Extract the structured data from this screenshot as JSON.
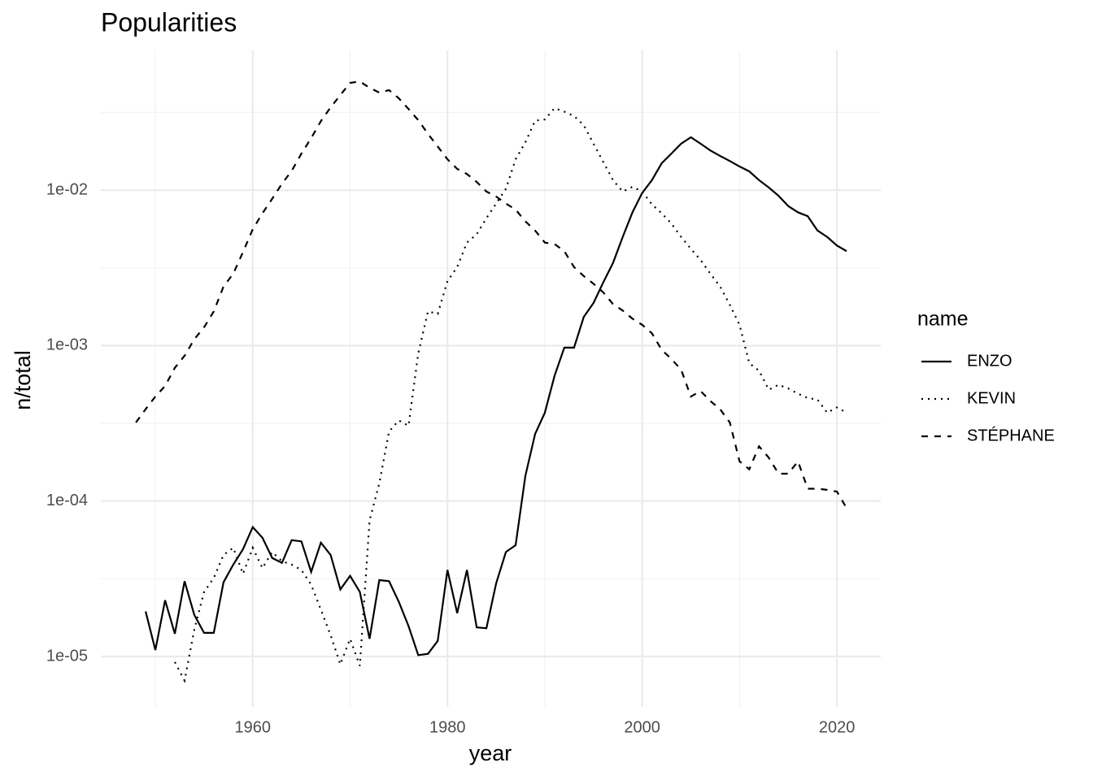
{
  "chart_data": {
    "type": "line",
    "title": "Popularities",
    "x_label": "year",
    "y_label": "n/total",
    "legend_title": "name",
    "legend": "right",
    "grid": true,
    "log_y": true,
    "xlim": [
      1944.4,
      2024.5
    ],
    "xticks": [
      1960,
      1980,
      2000,
      2020
    ],
    "ylim": [
      4.74e-06,
      0.0793
    ],
    "yticks": [
      {
        "value": 1e-05,
        "label": "1e-05"
      },
      {
        "value": 0.0001,
        "label": "1e-04"
      },
      {
        "value": 0.001,
        "label": "1e-03"
      },
      {
        "value": 0.01,
        "label": "1e-02"
      }
    ],
    "x": [
      1948,
      1949,
      1950,
      1951,
      1952,
      1953,
      1954,
      1955,
      1956,
      1957,
      1958,
      1959,
      1960,
      1961,
      1962,
      1963,
      1964,
      1965,
      1966,
      1967,
      1968,
      1969,
      1970,
      1971,
      1972,
      1973,
      1974,
      1975,
      1976,
      1977,
      1978,
      1979,
      1980,
      1981,
      1982,
      1983,
      1984,
      1985,
      1986,
      1987,
      1988,
      1989,
      1990,
      1991,
      1992,
      1993,
      1994,
      1995,
      1996,
      1997,
      1998,
      1999,
      2000,
      2001,
      2002,
      2003,
      2004,
      2005,
      2006,
      2007,
      2008,
      2009,
      2010,
      2011,
      2012,
      2013,
      2014,
      2015,
      2016,
      2017,
      2018,
      2019,
      2020,
      2021
    ],
    "series": [
      {
        "name": "ENZO",
        "color": "#000000",
        "linestyle": "solid",
        "values": [
          null,
          1.95e-05,
          1.1e-05,
          2.3e-05,
          1.4e-05,
          3.05e-05,
          1.85e-05,
          1.42e-05,
          1.42e-05,
          3e-05,
          3.9e-05,
          4.9e-05,
          6.8e-05,
          5.8e-05,
          4.3e-05,
          4e-05,
          5.6e-05,
          5.5e-05,
          3.5e-05,
          5.4e-05,
          4.5e-05,
          2.7e-05,
          3.3e-05,
          2.6e-05,
          1.3e-05,
          3.1e-05,
          3.05e-05,
          2.25e-05,
          1.57e-05,
          1.02e-05,
          1.04e-05,
          1.26e-05,
          3.6e-05,
          1.9e-05,
          3.6e-05,
          1.54e-05,
          1.52e-05,
          2.95e-05,
          4.7e-05,
          5.2e-05,
          0.000145,
          0.00027,
          0.00037,
          0.00064,
          0.00097,
          0.00097,
          0.00153,
          0.00188,
          0.00255,
          0.0034,
          0.005,
          0.0072,
          0.0096,
          0.0116,
          0.0149,
          0.0172,
          0.0199,
          0.0219,
          0.0199,
          0.018,
          0.0166,
          0.0154,
          0.0142,
          0.0132,
          0.0116,
          0.0104,
          0.0092,
          0.0079,
          0.0072,
          0.0068,
          0.0055,
          0.005,
          0.0044,
          0.00405
        ]
      },
      {
        "name": "KEVIN",
        "color": "#000000",
        "linestyle": "dotted",
        "values": [
          null,
          null,
          null,
          null,
          9.2e-06,
          7e-06,
          1.49e-05,
          2.6e-05,
          3.2e-05,
          4.5e-05,
          5e-05,
          3.4e-05,
          5e-05,
          3.7e-05,
          4.7e-05,
          4.1e-05,
          3.9e-05,
          3.6e-05,
          2.9e-05,
          2e-05,
          1.37e-05,
          8.9e-06,
          1.3e-05,
          8.7e-06,
          7.5e-05,
          0.00013,
          0.00028,
          0.00033,
          0.000305,
          0.00089,
          0.00166,
          0.0016,
          0.0026,
          0.0032,
          0.0046,
          0.0052,
          0.0066,
          0.0082,
          0.0102,
          0.0158,
          0.0203,
          0.028,
          0.0285,
          0.0337,
          0.032,
          0.03,
          0.0262,
          0.0199,
          0.0152,
          0.0116,
          0.0098,
          0.0105,
          0.0098,
          0.0081,
          0.0071,
          0.0061,
          0.005,
          0.0042,
          0.00355,
          0.0029,
          0.0024,
          0.00183,
          0.00136,
          0.00077,
          0.00069,
          0.00052,
          0.00056,
          0.00053,
          0.00049,
          0.00046,
          0.00045,
          0.00037,
          0.0004,
          0.00037
        ]
      },
      {
        "name": "STÉPHANE",
        "color": "#000000",
        "linestyle": "dashed",
        "values": [
          0.00032,
          0.00039,
          0.00047,
          0.00055,
          0.00072,
          0.00086,
          0.0011,
          0.00131,
          0.00166,
          0.0024,
          0.0029,
          0.004,
          0.0056,
          0.0071,
          0.0088,
          0.011,
          0.0133,
          0.0172,
          0.0216,
          0.0278,
          0.0341,
          0.0409,
          0.049,
          0.05,
          0.0456,
          0.0424,
          0.044,
          0.039,
          0.0333,
          0.0282,
          0.023,
          0.0191,
          0.0158,
          0.0137,
          0.0127,
          0.0113,
          0.0098,
          0.0091,
          0.0082,
          0.0075,
          0.0063,
          0.0055,
          0.0046,
          0.0045,
          0.00405,
          0.0032,
          0.0028,
          0.0025,
          0.0022,
          0.00185,
          0.00168,
          0.00149,
          0.00136,
          0.0012,
          0.00094,
          0.00082,
          0.0007,
          0.00047,
          0.00051,
          0.00044,
          0.00039,
          0.00032,
          0.00018,
          0.00016,
          0.000225,
          0.00019,
          0.00015,
          0.00015,
          0.00018,
          0.00012,
          0.00012,
          0.000118,
          0.000115,
          9e-05
        ]
      }
    ]
  }
}
